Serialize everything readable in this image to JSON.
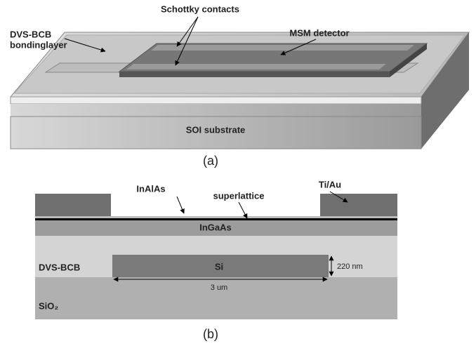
{
  "panel_a": {
    "labels": {
      "schottky_contacts": "Schottky contacts",
      "msm_detector": "MSM detector",
      "bonding_layer": [
        "DVS-BCB",
        "bondinglayer"
      ],
      "substrate": "SOI substrate"
    },
    "caption": "(a)"
  },
  "panel_b": {
    "labels": {
      "inalas": "InAlAs",
      "superlattice": "superlattice",
      "tiau": "Ti/Au",
      "ingaas": "InGaAs",
      "bcb": "DVS-BCB",
      "si": "Si",
      "thickness": "220 nm",
      "width": "3 um",
      "sio2": "SiO₂"
    },
    "caption": "(b)"
  }
}
